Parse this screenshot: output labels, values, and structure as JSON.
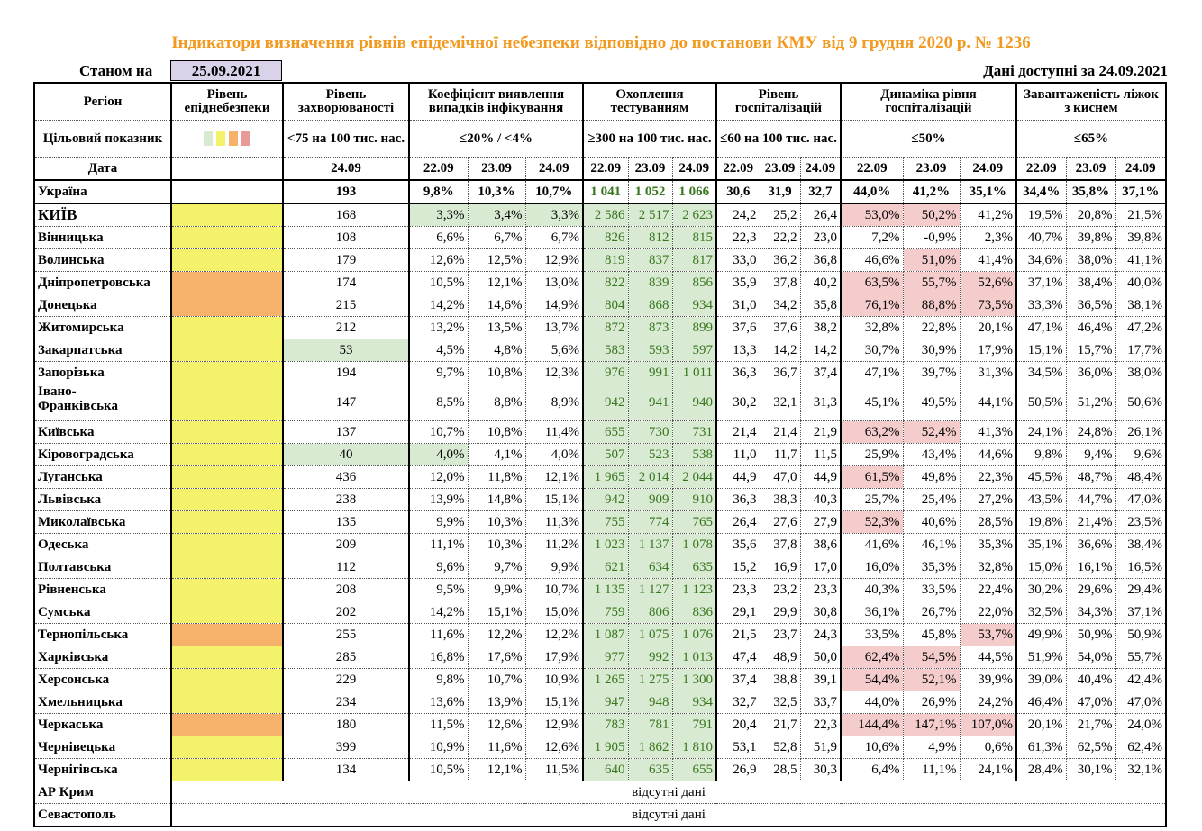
{
  "title": "Індикатори визначення рівнів епідемічної небезпеки відповідно до постанови КМУ від 9 грудня 2020 р. № 1236",
  "as_of_label": "Станом на",
  "as_of_date": "25.09.2021",
  "available_label": "Дані доступні за 24.09.2021",
  "headers": {
    "region": "Регіон",
    "level": "Рівень епіднебезпеки",
    "incidence": "Рівень захворюваності",
    "detection": "Коефіцієнт виявлення випадків інфікування",
    "testing": "Охоплення тестуванням",
    "hospital": "Рівень госпіталізацій",
    "dynamics": "Динаміка рівня госпіталізацій",
    "oxygen": "Завантаженість ліжок з киснем"
  },
  "target": {
    "label": "Цільовий показник",
    "incidence": "<75 на 100 тис. нас.",
    "detection": "≤20% / <4%",
    "testing": "≥300 на 100 тис. нас.",
    "hospital": "≤60 на 100 тис. нас.",
    "dynamics": "≤50%",
    "oxygen": "≤65%",
    "swatch_colors": [
      "#d9ead3",
      "#f4f16a",
      "#f6b26b",
      "#ea9999"
    ]
  },
  "date_row": {
    "label": "Дата",
    "incidence": "24.09",
    "dates": [
      "22.09",
      "23.09",
      "24.09"
    ]
  },
  "ukraine": {
    "name": "Україна",
    "incidence": "193",
    "detection": [
      "9,8%",
      "10,3%",
      "10,7%"
    ],
    "testing": [
      "1 041",
      "1 052",
      "1 066"
    ],
    "hospital": [
      "30,6",
      "31,9",
      "32,7"
    ],
    "dynamics": [
      "44,0%",
      "41,2%",
      "35,1%"
    ],
    "oxygen": [
      "34,4%",
      "35,8%",
      "37,1%"
    ]
  },
  "regions": [
    {
      "name": "КИЇВ",
      "level": "yellow",
      "incidence": "168",
      "detection": [
        "3,3%",
        "3,4%",
        "3,3%"
      ],
      "testing": [
        "2 586",
        "2 517",
        "2 623"
      ],
      "hospital": [
        "24,2",
        "25,2",
        "26,4"
      ],
      "dynamics": [
        "53,0%",
        "50,2%",
        "41,2%"
      ],
      "oxygen": [
        "19,5%",
        "20,8%",
        "21,5%"
      ],
      "det_hl": [
        1,
        1,
        1
      ],
      "dyn_hl": [
        1,
        1,
        0
      ],
      "inc_hl": 0,
      "big": true
    },
    {
      "name": "Вінницька",
      "level": "yellow",
      "incidence": "108",
      "detection": [
        "6,6%",
        "6,7%",
        "6,7%"
      ],
      "testing": [
        "826",
        "812",
        "815"
      ],
      "hospital": [
        "22,3",
        "22,2",
        "23,0"
      ],
      "dynamics": [
        "7,2%",
        "-0,9%",
        "2,3%"
      ],
      "oxygen": [
        "40,7%",
        "39,8%",
        "39,8%"
      ],
      "det_hl": [
        0,
        0,
        0
      ],
      "dyn_hl": [
        0,
        0,
        0
      ],
      "inc_hl": 0
    },
    {
      "name": "Волинська",
      "level": "yellow",
      "incidence": "179",
      "detection": [
        "12,6%",
        "12,5%",
        "12,9%"
      ],
      "testing": [
        "819",
        "837",
        "817"
      ],
      "hospital": [
        "33,0",
        "36,2",
        "36,8"
      ],
      "dynamics": [
        "46,6%",
        "51,0%",
        "41,4%"
      ],
      "oxygen": [
        "34,6%",
        "38,0%",
        "41,1%"
      ],
      "det_hl": [
        0,
        0,
        0
      ],
      "dyn_hl": [
        0,
        1,
        0
      ],
      "inc_hl": 0
    },
    {
      "name": "Дніпропетровська",
      "level": "orange",
      "incidence": "174",
      "detection": [
        "10,5%",
        "12,1%",
        "13,0%"
      ],
      "testing": [
        "822",
        "839",
        "856"
      ],
      "hospital": [
        "35,9",
        "37,8",
        "40,2"
      ],
      "dynamics": [
        "63,5%",
        "55,7%",
        "52,6%"
      ],
      "oxygen": [
        "37,1%",
        "38,4%",
        "40,0%"
      ],
      "det_hl": [
        0,
        0,
        0
      ],
      "dyn_hl": [
        1,
        1,
        1
      ],
      "inc_hl": 0
    },
    {
      "name": "Донецька",
      "level": "orange",
      "incidence": "215",
      "detection": [
        "14,2%",
        "14,6%",
        "14,9%"
      ],
      "testing": [
        "804",
        "868",
        "934"
      ],
      "hospital": [
        "31,0",
        "34,2",
        "35,8"
      ],
      "dynamics": [
        "76,1%",
        "88,8%",
        "73,5%"
      ],
      "oxygen": [
        "33,3%",
        "36,5%",
        "38,1%"
      ],
      "det_hl": [
        0,
        0,
        0
      ],
      "dyn_hl": [
        1,
        1,
        1
      ],
      "inc_hl": 0
    },
    {
      "name": "Житомирська",
      "level": "yellow",
      "incidence": "212",
      "detection": [
        "13,2%",
        "13,5%",
        "13,7%"
      ],
      "testing": [
        "872",
        "873",
        "899"
      ],
      "hospital": [
        "37,6",
        "37,6",
        "38,2"
      ],
      "dynamics": [
        "32,8%",
        "22,8%",
        "20,1%"
      ],
      "oxygen": [
        "47,1%",
        "46,4%",
        "47,2%"
      ],
      "det_hl": [
        0,
        0,
        0
      ],
      "dyn_hl": [
        0,
        0,
        0
      ],
      "inc_hl": 0
    },
    {
      "name": "Закарпатська",
      "level": "yellow",
      "incidence": "53",
      "detection": [
        "4,5%",
        "4,8%",
        "5,6%"
      ],
      "testing": [
        "583",
        "593",
        "597"
      ],
      "hospital": [
        "13,3",
        "14,2",
        "14,2"
      ],
      "dynamics": [
        "30,7%",
        "30,9%",
        "17,9%"
      ],
      "oxygen": [
        "15,1%",
        "15,7%",
        "17,7%"
      ],
      "det_hl": [
        0,
        0,
        0
      ],
      "dyn_hl": [
        0,
        0,
        0
      ],
      "inc_hl": 1
    },
    {
      "name": "Запорізька",
      "level": "yellow",
      "incidence": "194",
      "detection": [
        "9,7%",
        "10,8%",
        "12,3%"
      ],
      "testing": [
        "976",
        "991",
        "1 011"
      ],
      "hospital": [
        "36,3",
        "36,7",
        "37,4"
      ],
      "dynamics": [
        "47,1%",
        "39,7%",
        "31,3%"
      ],
      "oxygen": [
        "34,5%",
        "36,0%",
        "38,0%"
      ],
      "det_hl": [
        0,
        0,
        0
      ],
      "dyn_hl": [
        0,
        0,
        0
      ],
      "inc_hl": 0
    },
    {
      "name": "Івано-Франківська",
      "name1": "Івано-",
      "name2": "Франківська",
      "level": "yellow",
      "incidence": "147",
      "detection": [
        "8,5%",
        "8,8%",
        "8,9%"
      ],
      "testing": [
        "942",
        "941",
        "940"
      ],
      "hospital": [
        "30,2",
        "32,1",
        "31,3"
      ],
      "dynamics": [
        "45,1%",
        "49,5%",
        "44,1%"
      ],
      "oxygen": [
        "50,5%",
        "51,2%",
        "50,6%"
      ],
      "det_hl": [
        0,
        0,
        0
      ],
      "dyn_hl": [
        0,
        0,
        0
      ],
      "inc_hl": 0,
      "tall": true
    },
    {
      "name": "Київська",
      "level": "yellow",
      "incidence": "137",
      "detection": [
        "10,7%",
        "10,8%",
        "11,4%"
      ],
      "testing": [
        "655",
        "730",
        "731"
      ],
      "hospital": [
        "21,4",
        "21,4",
        "21,9"
      ],
      "dynamics": [
        "63,2%",
        "52,4%",
        "41,3%"
      ],
      "oxygen": [
        "24,1%",
        "24,8%",
        "26,1%"
      ],
      "det_hl": [
        0,
        0,
        0
      ],
      "dyn_hl": [
        1,
        1,
        0
      ],
      "inc_hl": 0
    },
    {
      "name": "Кіровоградська",
      "level": "yellow",
      "incidence": "40",
      "detection": [
        "4,0%",
        "4,1%",
        "4,0%"
      ],
      "testing": [
        "507",
        "523",
        "538"
      ],
      "hospital": [
        "11,0",
        "11,7",
        "11,5"
      ],
      "dynamics": [
        "25,9%",
        "43,4%",
        "44,6%"
      ],
      "oxygen": [
        "9,8%",
        "9,4%",
        "9,6%"
      ],
      "det_hl": [
        1,
        0,
        0
      ],
      "dyn_hl": [
        0,
        0,
        0
      ],
      "inc_hl": 1
    },
    {
      "name": "Луганська",
      "level": "yellow",
      "incidence": "436",
      "detection": [
        "12,0%",
        "11,8%",
        "12,1%"
      ],
      "testing": [
        "1 965",
        "2 014",
        "2 044"
      ],
      "hospital": [
        "44,9",
        "47,0",
        "44,9"
      ],
      "dynamics": [
        "61,5%",
        "49,8%",
        "22,3%"
      ],
      "oxygen": [
        "45,5%",
        "48,7%",
        "48,4%"
      ],
      "det_hl": [
        0,
        0,
        0
      ],
      "dyn_hl": [
        1,
        0,
        0
      ],
      "inc_hl": 0
    },
    {
      "name": "Львівська",
      "level": "yellow",
      "incidence": "238",
      "detection": [
        "13,9%",
        "14,8%",
        "15,1%"
      ],
      "testing": [
        "942",
        "909",
        "910"
      ],
      "hospital": [
        "36,3",
        "38,3",
        "40,3"
      ],
      "dynamics": [
        "25,7%",
        "25,4%",
        "27,2%"
      ],
      "oxygen": [
        "43,5%",
        "44,7%",
        "47,0%"
      ],
      "det_hl": [
        0,
        0,
        0
      ],
      "dyn_hl": [
        0,
        0,
        0
      ],
      "inc_hl": 0
    },
    {
      "name": "Миколаївська",
      "level": "yellow",
      "incidence": "135",
      "detection": [
        "9,9%",
        "10,3%",
        "11,3%"
      ],
      "testing": [
        "755",
        "774",
        "765"
      ],
      "hospital": [
        "26,4",
        "27,6",
        "27,9"
      ],
      "dynamics": [
        "52,3%",
        "40,6%",
        "28,5%"
      ],
      "oxygen": [
        "19,8%",
        "21,4%",
        "23,5%"
      ],
      "det_hl": [
        0,
        0,
        0
      ],
      "dyn_hl": [
        1,
        0,
        0
      ],
      "inc_hl": 0
    },
    {
      "name": "Одеська",
      "level": "yellow",
      "incidence": "209",
      "detection": [
        "11,1%",
        "10,3%",
        "11,2%"
      ],
      "testing": [
        "1 023",
        "1 137",
        "1 078"
      ],
      "hospital": [
        "35,6",
        "37,8",
        "38,6"
      ],
      "dynamics": [
        "41,6%",
        "46,1%",
        "35,3%"
      ],
      "oxygen": [
        "35,1%",
        "36,6%",
        "38,4%"
      ],
      "det_hl": [
        0,
        0,
        0
      ],
      "dyn_hl": [
        0,
        0,
        0
      ],
      "inc_hl": 0
    },
    {
      "name": "Полтавська",
      "level": "yellow",
      "incidence": "112",
      "detection": [
        "9,6%",
        "9,7%",
        "9,9%"
      ],
      "testing": [
        "621",
        "634",
        "635"
      ],
      "hospital": [
        "15,2",
        "16,9",
        "17,0"
      ],
      "dynamics": [
        "16,0%",
        "35,3%",
        "32,8%"
      ],
      "oxygen": [
        "15,0%",
        "16,1%",
        "16,5%"
      ],
      "det_hl": [
        0,
        0,
        0
      ],
      "dyn_hl": [
        0,
        0,
        0
      ],
      "inc_hl": 0
    },
    {
      "name": "Рівненська",
      "level": "yellow",
      "incidence": "208",
      "detection": [
        "9,5%",
        "9,9%",
        "10,7%"
      ],
      "testing": [
        "1 135",
        "1 127",
        "1 123"
      ],
      "hospital": [
        "23,3",
        "23,2",
        "23,3"
      ],
      "dynamics": [
        "40,3%",
        "33,5%",
        "22,4%"
      ],
      "oxygen": [
        "30,2%",
        "29,6%",
        "29,4%"
      ],
      "det_hl": [
        0,
        0,
        0
      ],
      "dyn_hl": [
        0,
        0,
        0
      ],
      "inc_hl": 0
    },
    {
      "name": "Сумська",
      "level": "yellow",
      "incidence": "202",
      "detection": [
        "14,2%",
        "15,1%",
        "15,0%"
      ],
      "testing": [
        "759",
        "806",
        "836"
      ],
      "hospital": [
        "29,1",
        "29,9",
        "30,8"
      ],
      "dynamics": [
        "36,1%",
        "26,7%",
        "22,0%"
      ],
      "oxygen": [
        "32,5%",
        "34,3%",
        "37,1%"
      ],
      "det_hl": [
        0,
        0,
        0
      ],
      "dyn_hl": [
        0,
        0,
        0
      ],
      "inc_hl": 0
    },
    {
      "name": "Тернопільська",
      "level": "orange",
      "incidence": "255",
      "detection": [
        "11,6%",
        "12,2%",
        "12,2%"
      ],
      "testing": [
        "1 087",
        "1 075",
        "1 076"
      ],
      "hospital": [
        "21,5",
        "23,7",
        "24,3"
      ],
      "dynamics": [
        "33,5%",
        "45,8%",
        "53,7%"
      ],
      "oxygen": [
        "49,9%",
        "50,9%",
        "50,9%"
      ],
      "det_hl": [
        0,
        0,
        0
      ],
      "dyn_hl": [
        0,
        0,
        1
      ],
      "inc_hl": 0
    },
    {
      "name": "Харківська",
      "level": "yellow",
      "incidence": "285",
      "detection": [
        "16,8%",
        "17,6%",
        "17,9%"
      ],
      "testing": [
        "977",
        "992",
        "1 013"
      ],
      "hospital": [
        "47,4",
        "48,9",
        "50,0"
      ],
      "dynamics": [
        "62,4%",
        "54,5%",
        "44,5%"
      ],
      "oxygen": [
        "51,9%",
        "54,0%",
        "55,7%"
      ],
      "det_hl": [
        0,
        0,
        0
      ],
      "dyn_hl": [
        1,
        1,
        0
      ],
      "inc_hl": 0
    },
    {
      "name": "Херсонська",
      "level": "yellow",
      "incidence": "229",
      "detection": [
        "9,8%",
        "10,7%",
        "10,9%"
      ],
      "testing": [
        "1 265",
        "1 275",
        "1 300"
      ],
      "hospital": [
        "37,4",
        "38,8",
        "39,1"
      ],
      "dynamics": [
        "54,4%",
        "52,1%",
        "39,9%"
      ],
      "oxygen": [
        "39,0%",
        "40,4%",
        "42,4%"
      ],
      "det_hl": [
        0,
        0,
        0
      ],
      "dyn_hl": [
        1,
        1,
        0
      ],
      "inc_hl": 0
    },
    {
      "name": "Хмельницька",
      "level": "yellow",
      "incidence": "234",
      "detection": [
        "13,6%",
        "13,9%",
        "15,1%"
      ],
      "testing": [
        "947",
        "948",
        "934"
      ],
      "hospital": [
        "32,7",
        "32,5",
        "33,7"
      ],
      "dynamics": [
        "44,0%",
        "26,9%",
        "24,2%"
      ],
      "oxygen": [
        "46,4%",
        "47,0%",
        "47,0%"
      ],
      "det_hl": [
        0,
        0,
        0
      ],
      "dyn_hl": [
        0,
        0,
        0
      ],
      "inc_hl": 0
    },
    {
      "name": "Черкаська",
      "level": "orange",
      "incidence": "180",
      "detection": [
        "11,5%",
        "12,6%",
        "12,9%"
      ],
      "testing": [
        "783",
        "781",
        "791"
      ],
      "hospital": [
        "20,4",
        "21,7",
        "22,3"
      ],
      "dynamics": [
        "144,4%",
        "147,1%",
        "107,0%"
      ],
      "oxygen": [
        "20,1%",
        "21,7%",
        "24,0%"
      ],
      "det_hl": [
        0,
        0,
        0
      ],
      "dyn_hl": [
        1,
        1,
        1
      ],
      "inc_hl": 0
    },
    {
      "name": "Чернівецька",
      "level": "yellow",
      "incidence": "399",
      "detection": [
        "10,9%",
        "11,6%",
        "12,6%"
      ],
      "testing": [
        "1 905",
        "1 862",
        "1 810"
      ],
      "hospital": [
        "53,1",
        "52,8",
        "51,9"
      ],
      "dynamics": [
        "10,6%",
        "4,9%",
        "0,6%"
      ],
      "oxygen": [
        "61,3%",
        "62,5%",
        "62,4%"
      ],
      "det_hl": [
        0,
        0,
        0
      ],
      "dyn_hl": [
        0,
        0,
        0
      ],
      "inc_hl": 0
    },
    {
      "name": "Чернігівська",
      "level": "yellow",
      "incidence": "134",
      "detection": [
        "10,5%",
        "12,1%",
        "11,5%"
      ],
      "testing": [
        "640",
        "635",
        "655"
      ],
      "hospital": [
        "26,9",
        "28,5",
        "30,3"
      ],
      "dynamics": [
        "6,4%",
        "11,1%",
        "24,1%"
      ],
      "oxygen": [
        "28,4%",
        "30,1%",
        "32,1%"
      ],
      "det_hl": [
        0,
        0,
        0
      ],
      "dyn_hl": [
        0,
        0,
        0
      ],
      "inc_hl": 0
    }
  ],
  "no_data": [
    {
      "name": "АР Крим",
      "text": "відсутні дані"
    },
    {
      "name": "Севастополь",
      "text": "відсутні дані"
    }
  ]
}
